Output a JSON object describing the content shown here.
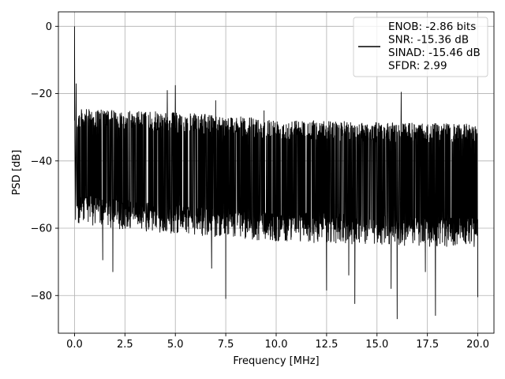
{
  "chart_data": {
    "type": "line",
    "title": "",
    "xlabel": "Frequency [MHz]",
    "ylabel": "PSD [dB]",
    "xlim": [
      -0.8,
      20.8
    ],
    "ylim": [
      -91.2,
      4.3
    ],
    "xticks": [
      0.0,
      2.5,
      5.0,
      7.5,
      10.0,
      12.5,
      15.0,
      17.5,
      20.0
    ],
    "xtick_labels": [
      "0.0",
      "2.5",
      "5.0",
      "7.5",
      "10.0",
      "12.5",
      "15.0",
      "17.5",
      "20.0"
    ],
    "yticks": [
      0,
      -20,
      -40,
      -60,
      -80
    ],
    "ytick_labels": [
      "0",
      "−20",
      "−40",
      "−60",
      "−80"
    ],
    "grid": true,
    "legend": {
      "placement": "top-right",
      "entries": [
        "ENOB: -2.86 bits",
        "SNR: -15.36 dB",
        "SINAD: -15.46 dB",
        "SFDR: 2.99"
      ]
    },
    "series": [
      {
        "color": "#000000",
        "description": "noise floor spectrum from 0 to 20 MHz, upper envelope about -25 to -30 dB, lower envelope about -55 to -65 dB",
        "noise_upper": [
          [
            0.2,
            -24.5
          ],
          [
            5.0,
            -25.5
          ],
          [
            10.0,
            -27.5
          ],
          [
            15.0,
            -28.5
          ],
          [
            20.0,
            -29.0
          ]
        ],
        "noise_lower": [
          [
            0.2,
            -55.0
          ],
          [
            5.0,
            -58.0
          ],
          [
            10.0,
            -60.0
          ],
          [
            15.0,
            -61.0
          ],
          [
            20.0,
            -62.0
          ]
        ],
        "peaks": [
          {
            "x": 0.0,
            "y": 0.0
          },
          {
            "x": 0.08,
            "y": -17.0
          },
          {
            "x": 4.6,
            "y": -19.0
          },
          {
            "x": 5.0,
            "y": -17.5
          },
          {
            "x": 7.0,
            "y": -22.0
          },
          {
            "x": 9.4,
            "y": -25.0
          },
          {
            "x": 16.2,
            "y": -19.5
          }
        ],
        "dips": [
          {
            "x": 0.05,
            "y": -57.5
          },
          {
            "x": 1.4,
            "y": -69.5
          },
          {
            "x": 1.9,
            "y": -73.0
          },
          {
            "x": 6.8,
            "y": -72.0
          },
          {
            "x": 7.5,
            "y": -81.0
          },
          {
            "x": 12.5,
            "y": -78.5
          },
          {
            "x": 13.6,
            "y": -74.0
          },
          {
            "x": 13.9,
            "y": -82.5
          },
          {
            "x": 15.7,
            "y": -78.0
          },
          {
            "x": 16.0,
            "y": -87.0
          },
          {
            "x": 17.4,
            "y": -73.0
          },
          {
            "x": 17.9,
            "y": -86.0
          },
          {
            "x": 20.0,
            "y": -80.5
          }
        ]
      }
    ]
  }
}
